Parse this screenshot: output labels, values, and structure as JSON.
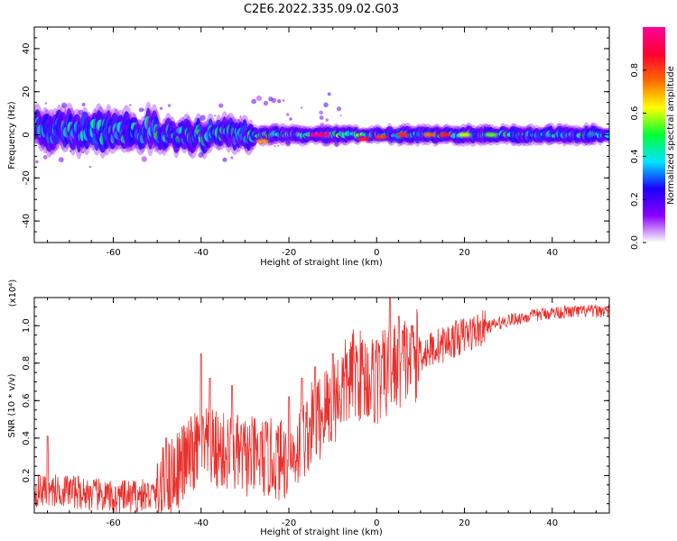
{
  "figure": {
    "title": "C2E6.2022.335.09.02.G03"
  },
  "chart_data": [
    {
      "type": "heatmap",
      "xlabel": "Height of straight line (km)",
      "ylabel": "Frequency (Hz)",
      "xlim": [
        -78,
        53
      ],
      "ylim": [
        -50,
        50
      ],
      "x_ticks": [
        -60,
        -40,
        -20,
        0,
        20,
        40
      ],
      "x_tick_labels": [
        "-60",
        "-40",
        "-20",
        "0",
        "20",
        "40"
      ],
      "y_ticks": [
        -40,
        -20,
        0,
        20,
        40
      ],
      "y_tick_labels": [
        "-40",
        "-20",
        "0",
        "20",
        "40"
      ],
      "colorbar": {
        "label": "Normalized spectral amplitude",
        "range": [
          0,
          1
        ],
        "ticks": [
          0.0,
          0.2,
          0.4,
          0.6,
          0.8
        ],
        "tick_labels": [
          "0.0",
          "0.2",
          "0.4",
          "0.6",
          "0.8"
        ],
        "colors": [
          "#ffffff",
          "#8a00ff",
          "#1a00ff",
          "#00e5ff",
          "#00ff33",
          "#ffff00",
          "#ff6a00",
          "#ff0033",
          "#ff0099"
        ]
      },
      "bands": [
        {
          "x_start": -78,
          "x_end": -50,
          "center_hz": 2,
          "half_width_hz": 6,
          "intensity": 0.35
        },
        {
          "x_start": -50,
          "x_end": -28,
          "center_hz": 0,
          "half_width_hz": 5,
          "intensity": 0.4
        },
        {
          "x_start": -28,
          "x_end": 0,
          "center_hz": 0,
          "half_width_hz": 3,
          "intensity": 0.45
        },
        {
          "x_start": 0,
          "x_end": 53,
          "center_hz": 0,
          "half_width_hz": 3,
          "intensity": 0.4
        }
      ],
      "hotspots": [
        {
          "x": -26,
          "y": -3,
          "v": 0.7
        },
        {
          "x": -14,
          "y": 0,
          "v": 1.0
        },
        {
          "x": -12,
          "y": 0,
          "v": 0.95
        },
        {
          "x": -3,
          "y": -2,
          "v": 0.85
        },
        {
          "x": 1,
          "y": -1,
          "v": 0.8
        },
        {
          "x": 6,
          "y": 0,
          "v": 0.85
        },
        {
          "x": 12,
          "y": 0,
          "v": 0.75
        },
        {
          "x": 15.5,
          "y": 0,
          "v": 0.85
        },
        {
          "x": 20,
          "y": 0,
          "v": 0.6
        },
        {
          "x": 26,
          "y": 0,
          "v": 0.55
        }
      ]
    },
    {
      "type": "line",
      "xlabel": "Height of straight line (km)",
      "ylabel": "SNR (10 * v/v)",
      "yexponent": "(x10⁴)",
      "xlim": [
        -78,
        53
      ],
      "ylim": [
        0,
        1.15
      ],
      "x_ticks": [
        -60,
        -40,
        -20,
        0,
        20,
        40
      ],
      "x_tick_labels": [
        "-60",
        "-40",
        "-20",
        "0",
        "20",
        "40"
      ],
      "y_ticks": [
        0.2,
        0.4,
        0.6,
        0.8,
        1.0
      ],
      "y_tick_labels": [
        "0.2",
        "0.4",
        "0.6",
        "0.8",
        "1.0"
      ],
      "series": [
        {
          "color": "#e8302c",
          "envelope": [
            [
              -78,
              0.12
            ],
            [
              -70,
              0.12
            ],
            [
              -60,
              0.08
            ],
            [
              -50,
              0.1
            ],
            [
              -45,
              0.25
            ],
            [
              -40,
              0.35
            ],
            [
              -30,
              0.3
            ],
            [
              -20,
              0.28
            ],
            [
              -15,
              0.45
            ],
            [
              -10,
              0.6
            ],
            [
              -5,
              0.75
            ],
            [
              0,
              0.7
            ],
            [
              5,
              0.8
            ],
            [
              10,
              0.85
            ],
            [
              15,
              0.9
            ],
            [
              20,
              0.95
            ],
            [
              30,
              1.03
            ],
            [
              40,
              1.07
            ],
            [
              53,
              1.08
            ]
          ],
          "peaks": [
            [
              -75,
              0.41
            ],
            [
              -48,
              0.4
            ],
            [
              -40,
              0.85
            ],
            [
              -38,
              0.72
            ],
            [
              -33,
              0.68
            ],
            [
              -20,
              0.62
            ],
            [
              -17,
              0.72
            ],
            [
              -14,
              0.78
            ],
            [
              -10,
              0.85
            ],
            [
              -5,
              0.8
            ],
            [
              0,
              0.92
            ],
            [
              3,
              1.15
            ],
            [
              5,
              1.05
            ],
            [
              8,
              1.0
            ]
          ]
        }
      ]
    }
  ]
}
